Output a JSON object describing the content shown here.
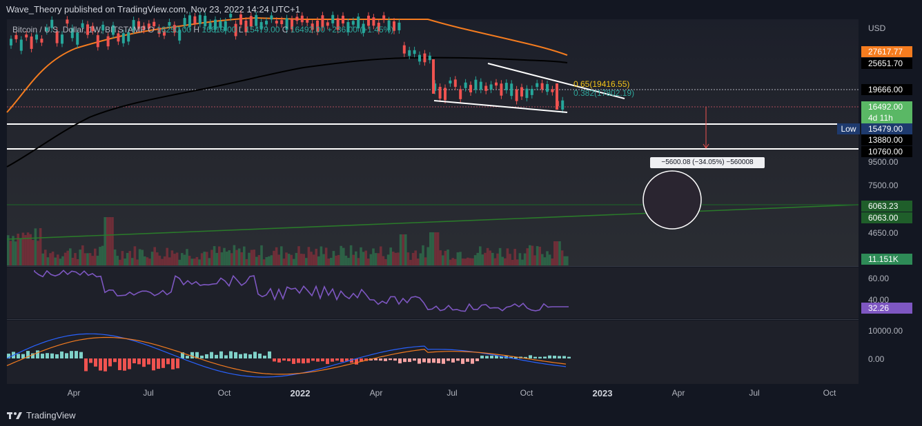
{
  "header": {
    "publisher_text": "Wave_Theory published on TradingView.com, Nov 23, 2022 14:24 UTC+1"
  },
  "legend": {
    "symbol": "Bitcoin / U.S. Dollar, 1W, BITSTAMP",
    "open_label": "O",
    "open_value": "16250.00",
    "high_label": "H",
    "high_value": "16619.00",
    "low_label": "L",
    "low_value": "15479.00",
    "close_label": "C",
    "close_value": "16492.00",
    "change": "+236.00 (+1.45%)"
  },
  "price_axis": {
    "currency": "USD",
    "labels": [
      {
        "text": "9500.00"
      },
      {
        "text": "7500.00"
      },
      {
        "text": "4650.00"
      }
    ]
  },
  "price_tags": {
    "ma_orange": {
      "text": "27617.77",
      "color": "#f57c1f"
    },
    "ma_black": {
      "text": "25651.70",
      "color": "#000000"
    },
    "level_19666": {
      "text": "19666.00",
      "color": "#000000"
    },
    "last_price": {
      "text": "16492.00",
      "countdown": "4d 11h",
      "color": "#5ab865"
    },
    "low": {
      "label": "Low",
      "text": "15479.00",
      "color": "#1e3a6e"
    },
    "level_13880": {
      "text": "13880.00",
      "color": "#000000"
    },
    "level_10760": {
      "text": "10760.00",
      "color": "#000000"
    },
    "trend_a": {
      "text": "6063.23",
      "color": "#1f5e2a"
    },
    "trend_b": {
      "text": "6063.00",
      "color": "#1f5e2a"
    },
    "volume": {
      "text": "11.151K",
      "color": "#2e8b57"
    }
  },
  "fib_labels": {
    "fib_065": "0.65(19416.55)",
    "fib_0382": "0.382(17802.19)"
  },
  "measurement": {
    "text": "−5600.08 (−34.05%) −560008"
  },
  "rsi_axis": {
    "labels": [
      "60.00",
      "40.00"
    ],
    "value": "32.26",
    "value_color": "#7e57c2"
  },
  "macd_axis": {
    "labels": [
      "10000.00",
      "0.00"
    ]
  },
  "time_axis": {
    "labels": [
      {
        "text": "Apr",
        "bold": false
      },
      {
        "text": "Jul",
        "bold": false
      },
      {
        "text": "Oct",
        "bold": false
      },
      {
        "text": "2022",
        "bold": true
      },
      {
        "text": "Apr",
        "bold": false
      },
      {
        "text": "Jul",
        "bold": false
      },
      {
        "text": "Oct",
        "bold": false
      },
      {
        "text": "2023",
        "bold": true
      },
      {
        "text": "Apr",
        "bold": false
      },
      {
        "text": "Jul",
        "bold": false
      },
      {
        "text": "Oct",
        "bold": false
      }
    ]
  },
  "footer": {
    "brand": "TradingView"
  },
  "colors": {
    "up": "#26a69a",
    "down": "#ef5350",
    "ma_orange": "#f57c1f",
    "ma_black": "#000000",
    "trend_green": "#2a7a2a",
    "rsi": "#7e57c2",
    "macd": "#2962ff",
    "signal": "#f57c1f"
  }
}
